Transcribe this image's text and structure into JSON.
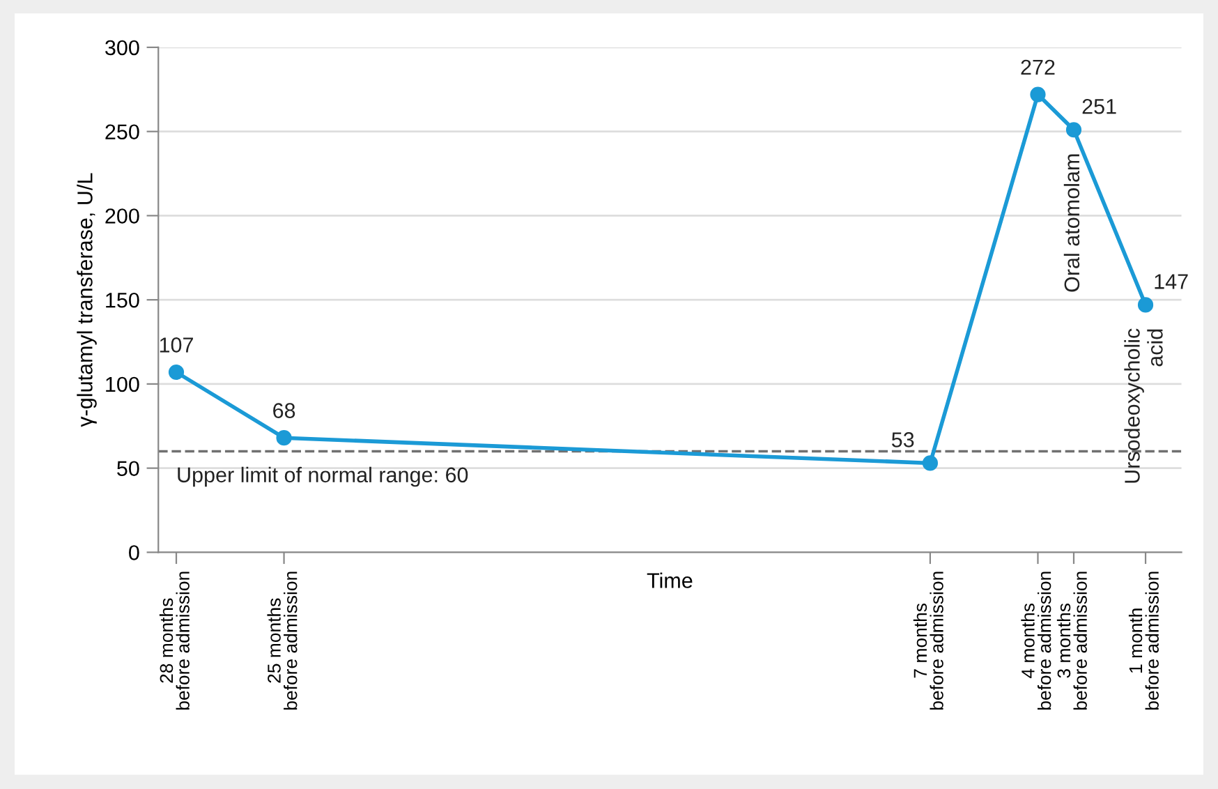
{
  "chart_data": {
    "type": "line",
    "ylabel": "γ-glutamyl transferase, U/L",
    "xlabel": "Time",
    "x": [
      -28,
      -25,
      -7,
      -4,
      -3,
      -1
    ],
    "series": [
      {
        "color": "#1b9ad6",
        "values": [
          107,
          68,
          53,
          272,
          251,
          147
        ]
      }
    ],
    "xlim": [
      -28.5,
      0
    ],
    "xticks": [
      {
        "value": -28,
        "label": "28 months\nbefore admission"
      },
      {
        "value": -25,
        "label": "25 months\nbefore admission"
      },
      {
        "value": -7,
        "label": "7 months\nbefore admission"
      },
      {
        "value": -4,
        "label": "4 months\nbefore admission"
      },
      {
        "value": -3,
        "label": "3 months\nbefore admission"
      },
      {
        "value": -1,
        "label": "1 month\nbefore admission"
      }
    ],
    "ylim": [
      0,
      300
    ],
    "yticks": [
      0,
      50,
      100,
      150,
      200,
      250,
      300
    ],
    "grid": "y",
    "marker": "circle",
    "line_style": "solid",
    "data_labels": true,
    "ref_lines": [
      {
        "axis": "y",
        "value": 60,
        "label": "Upper limit of normal range: 60",
        "color": "#707070",
        "line_style": "dashed"
      }
    ],
    "annotations": [
      {
        "text": "Oral atomolam",
        "x": -3,
        "y": 251
      },
      {
        "text": "Ursodeoxycholic\nacid",
        "x": -1,
        "y": 147
      }
    ]
  }
}
